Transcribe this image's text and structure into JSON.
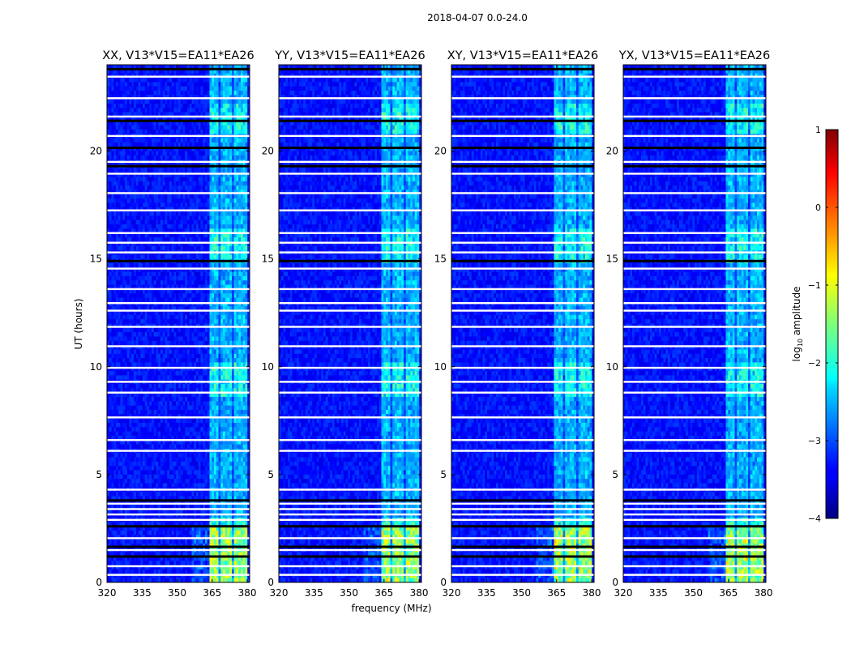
{
  "chart_data": {
    "type": "heatmap",
    "suptitle": "2018-04-07 0.0-24.0",
    "xlabel": "frequency (MHz)",
    "ylabel": "UT (hours)",
    "xlim": [
      320,
      381
    ],
    "ylim": [
      0,
      24
    ],
    "xticks": [
      320,
      335,
      350,
      365,
      380
    ],
    "yticks": [
      0,
      5,
      10,
      15,
      20
    ],
    "background_log10_amplitude": -3.3,
    "rfi_band_mhz": [
      364,
      380
    ],
    "rfi_subbands_mhz": [
      [
        364,
        368
      ],
      [
        369,
        373
      ],
      [
        374,
        377
      ],
      [
        377.5,
        380
      ]
    ],
    "flagged_rows_white_ut": [
      0.35,
      0.75,
      1.5,
      2.05,
      2.9,
      3.15,
      3.4,
      3.65,
      4.3,
      6.1,
      6.6,
      7.65,
      8.8,
      9.3,
      9.95,
      10.95,
      11.85,
      12.6,
      12.95,
      13.6,
      14.55,
      15.3,
      15.75,
      16.2,
      17.25,
      18.05,
      18.95,
      19.5,
      20.7,
      21.6,
      22.45,
      23.45
    ],
    "flagged_rows_black_ut": [
      1.2,
      1.65,
      2.6,
      3.8,
      14.9,
      19.3,
      20.15,
      21.4,
      23.8
    ],
    "panels": [
      {
        "name": "XX",
        "title": "XX, V13*V15=EA11*EA26",
        "show_ylabel": true,
        "show_xlabel": false
      },
      {
        "name": "YY",
        "title": "YY, V13*V15=EA11*EA26",
        "show_ylabel": false,
        "show_xlabel": true
      },
      {
        "name": "XY",
        "title": "XY, V13*V15=EA11*EA26",
        "show_ylabel": false,
        "show_xlabel": false
      },
      {
        "name": "YX",
        "title": "YX, V13*V15=EA11*EA26",
        "show_ylabel": false,
        "show_xlabel": false
      }
    ],
    "colorbar": {
      "label": "log10 amplitude",
      "label_base": "log",
      "label_sub": "10",
      "label_rest": " amplitude",
      "range": [
        -4,
        1
      ],
      "ticks": [
        1,
        0,
        -1,
        -2,
        -3,
        -4
      ],
      "tick_labels": [
        "1",
        "0",
        "−1",
        "−2",
        "−3",
        "−4"
      ],
      "colormap": "jet"
    }
  }
}
